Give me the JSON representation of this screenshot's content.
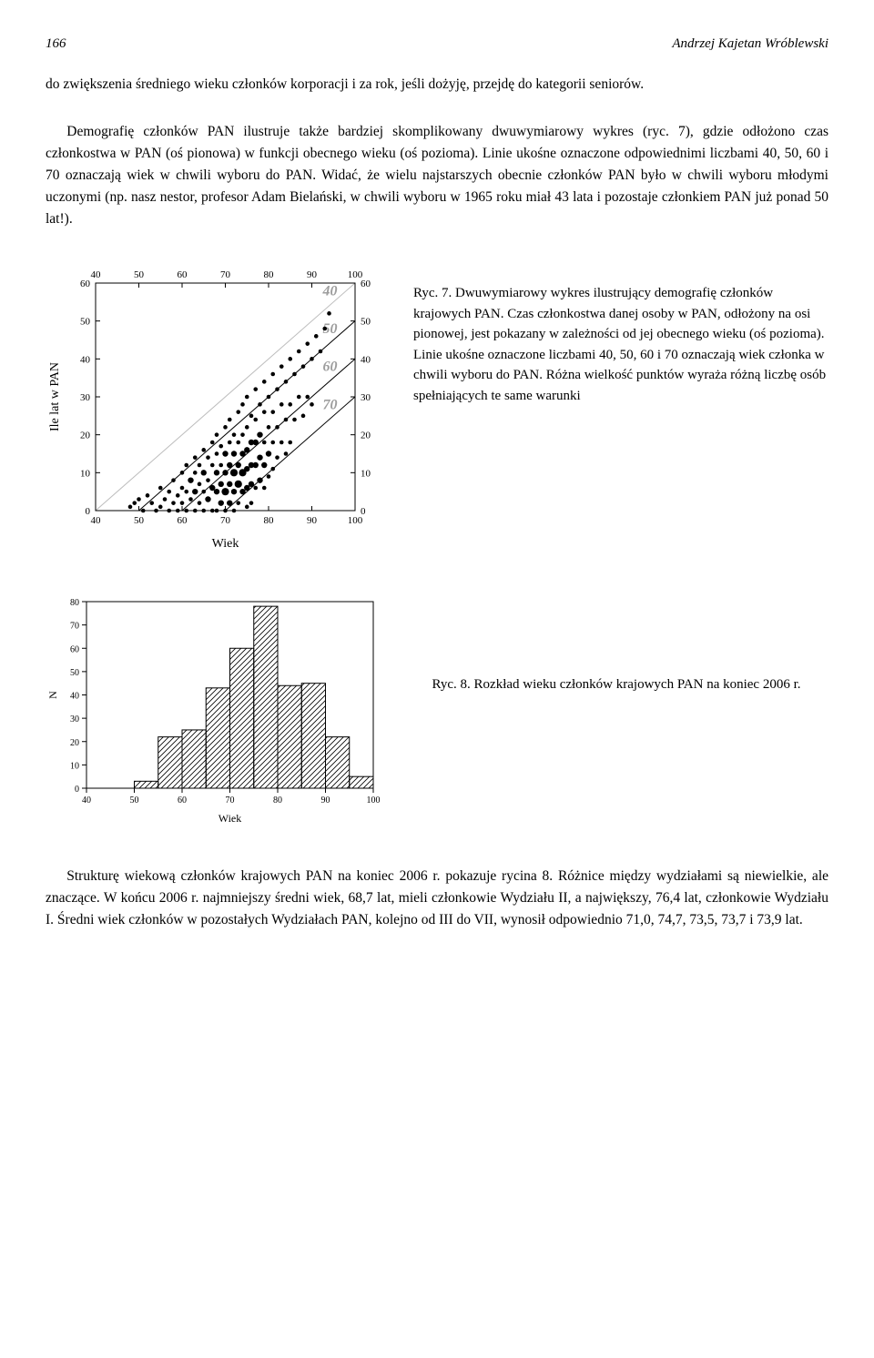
{
  "header": {
    "page_number": "166",
    "author": "Andrzej Kajetan Wróblewski"
  },
  "paragraph1": "do zwiększenia średniego wieku członków korporacji i za rok, jeśli dożyję, przejdę do kategorii seniorów.",
  "paragraph2": "Demografię członków PAN ilustruje także bardziej skomplikowany dwuwymiarowy wykres (ryc. 7), gdzie odłożono czas członkostwa w PAN (oś pionowa) w funkcji obecnego wieku (oś pozioma). Linie ukośne oznaczone odpowiednimi liczbami 40, 50, 60 i 70 oznaczają wiek w chwili wyboru do PAN. Widać, że wielu najstarszych obecnie członków PAN było w chwili wyboru młodymi uczonymi (np. nasz nestor, profesor Adam Bielański, w chwili wyboru w 1965 roku miał 43 lata i pozostaje członkiem PAN już ponad 50 lat!).",
  "paragraph3": "Strukturę wiekową członków krajowych PAN na koniec 2006 r. pokazuje rycina 8. Różnice między wydziałami są niewielkie, ale znaczące. W końcu 2006 r. najmniejszy średni wiek, 68,7 lat, mieli członkowie Wydziału II, a największy, 76,4 lat, członkowie Wydziału I. Średni wiek członków w pozostałych Wydziałach PAN, kolejno od III do VII, wynosił odpowiednio 71,0, 74,7, 73,5, 73,7 i 73,9 lat.",
  "fig7": {
    "type": "scatter",
    "xlabel": "Wiek",
    "ylabel": "Ile lat w PAN",
    "xlim": [
      40,
      100
    ],
    "ylim": [
      0,
      60
    ],
    "xticks": [
      40,
      50,
      60,
      70,
      80,
      90,
      100
    ],
    "yticks": [
      0,
      10,
      20,
      30,
      40,
      50,
      60
    ],
    "yticks_right": [
      0,
      10,
      20,
      30,
      40,
      50,
      60
    ],
    "top_ticks": [
      40,
      50,
      60,
      70,
      80,
      90,
      100
    ],
    "diag_lines": [
      {
        "label": "40",
        "intercept": 40,
        "color": "#bdbdbd"
      },
      {
        "label": "50",
        "intercept": 50,
        "color": "#000000"
      },
      {
        "label": "60",
        "intercept": 60,
        "color": "#000000"
      },
      {
        "label": "70",
        "intercept": 70,
        "color": "#000000"
      }
    ],
    "diag_label_color": "#9e9e9e",
    "diag_label_fontsize": 16,
    "label_fontsize": 14,
    "tick_fontsize": 11,
    "background_color": "#ffffff",
    "axis_color": "#000000",
    "point_color": "#000000",
    "points": [
      [
        48,
        1,
        1
      ],
      [
        49,
        2,
        1
      ],
      [
        50,
        3,
        1
      ],
      [
        51,
        0,
        1
      ],
      [
        52,
        4,
        1
      ],
      [
        53,
        2,
        1
      ],
      [
        54,
        0,
        1
      ],
      [
        55,
        6,
        1
      ],
      [
        55,
        1,
        1
      ],
      [
        56,
        3,
        1
      ],
      [
        57,
        5,
        1
      ],
      [
        57,
        0,
        1
      ],
      [
        58,
        8,
        1
      ],
      [
        58,
        2,
        1
      ],
      [
        59,
        4,
        1
      ],
      [
        59,
        0,
        1
      ],
      [
        60,
        10,
        1
      ],
      [
        60,
        6,
        1
      ],
      [
        60,
        2,
        1
      ],
      [
        61,
        12,
        1
      ],
      [
        61,
        5,
        1
      ],
      [
        61,
        0,
        1
      ],
      [
        62,
        8,
        2
      ],
      [
        62,
        3,
        1
      ],
      [
        63,
        14,
        1
      ],
      [
        63,
        10,
        1
      ],
      [
        63,
        5,
        2
      ],
      [
        63,
        0,
        1
      ],
      [
        64,
        12,
        1
      ],
      [
        64,
        7,
        1
      ],
      [
        64,
        2,
        1
      ],
      [
        65,
        16,
        1
      ],
      [
        65,
        10,
        2
      ],
      [
        65,
        5,
        1
      ],
      [
        65,
        0,
        1
      ],
      [
        66,
        14,
        1
      ],
      [
        66,
        8,
        1
      ],
      [
        66,
        3,
        2
      ],
      [
        67,
        18,
        1
      ],
      [
        67,
        12,
        1
      ],
      [
        67,
        6,
        2
      ],
      [
        67,
        0,
        1
      ],
      [
        68,
        20,
        1
      ],
      [
        68,
        15,
        1
      ],
      [
        68,
        10,
        2
      ],
      [
        68,
        5,
        2
      ],
      [
        68,
        0,
        1
      ],
      [
        69,
        17,
        1
      ],
      [
        69,
        12,
        1
      ],
      [
        69,
        7,
        2
      ],
      [
        69,
        2,
        2
      ],
      [
        70,
        22,
        1
      ],
      [
        70,
        15,
        2
      ],
      [
        70,
        10,
        2
      ],
      [
        70,
        5,
        3
      ],
      [
        70,
        0,
        1
      ],
      [
        71,
        24,
        1
      ],
      [
        71,
        18,
        1
      ],
      [
        71,
        12,
        2
      ],
      [
        71,
        7,
        2
      ],
      [
        71,
        2,
        2
      ],
      [
        72,
        20,
        1
      ],
      [
        72,
        15,
        2
      ],
      [
        72,
        10,
        3
      ],
      [
        72,
        5,
        2
      ],
      [
        72,
        0,
        1
      ],
      [
        73,
        26,
        1
      ],
      [
        73,
        18,
        1
      ],
      [
        73,
        12,
        2
      ],
      [
        73,
        7,
        3
      ],
      [
        73,
        2,
        1
      ],
      [
        74,
        28,
        1
      ],
      [
        74,
        20,
        1
      ],
      [
        74,
        15,
        2
      ],
      [
        74,
        10,
        3
      ],
      [
        74,
        5,
        2
      ],
      [
        75,
        30,
        1
      ],
      [
        75,
        22,
        1
      ],
      [
        75,
        16,
        2
      ],
      [
        75,
        11,
        2
      ],
      [
        75,
        6,
        2
      ],
      [
        75,
        1,
        1
      ],
      [
        76,
        25,
        1
      ],
      [
        76,
        18,
        2
      ],
      [
        76,
        12,
        2
      ],
      [
        76,
        7,
        2
      ],
      [
        76,
        2,
        1
      ],
      [
        77,
        32,
        1
      ],
      [
        77,
        24,
        1
      ],
      [
        77,
        18,
        2
      ],
      [
        77,
        12,
        2
      ],
      [
        77,
        6,
        1
      ],
      [
        78,
        28,
        1
      ],
      [
        78,
        20,
        2
      ],
      [
        78,
        14,
        2
      ],
      [
        78,
        8,
        2
      ],
      [
        79,
        34,
        1
      ],
      [
        79,
        26,
        1
      ],
      [
        79,
        18,
        1
      ],
      [
        79,
        12,
        2
      ],
      [
        79,
        6,
        1
      ],
      [
        80,
        30,
        1
      ],
      [
        80,
        22,
        1
      ],
      [
        80,
        15,
        2
      ],
      [
        80,
        9,
        1
      ],
      [
        81,
        36,
        1
      ],
      [
        81,
        26,
        1
      ],
      [
        81,
        18,
        1
      ],
      [
        81,
        11,
        1
      ],
      [
        82,
        32,
        1
      ],
      [
        82,
        22,
        1
      ],
      [
        82,
        14,
        1
      ],
      [
        83,
        38,
        1
      ],
      [
        83,
        28,
        1
      ],
      [
        83,
        18,
        1
      ],
      [
        84,
        34,
        1
      ],
      [
        84,
        24,
        1
      ],
      [
        84,
        15,
        1
      ],
      [
        85,
        40,
        1
      ],
      [
        85,
        28,
        1
      ],
      [
        85,
        18,
        1
      ],
      [
        86,
        36,
        1
      ],
      [
        86,
        24,
        1
      ],
      [
        87,
        42,
        1
      ],
      [
        87,
        30,
        1
      ],
      [
        88,
        38,
        1
      ],
      [
        88,
        25,
        1
      ],
      [
        89,
        44,
        1
      ],
      [
        89,
        30,
        1
      ],
      [
        90,
        40,
        1
      ],
      [
        90,
        28,
        1
      ],
      [
        91,
        46,
        1
      ],
      [
        92,
        42,
        1
      ],
      [
        93,
        48,
        1
      ],
      [
        94,
        52,
        1
      ]
    ],
    "caption": "Ryc. 7. Dwuwymiarowy wykres ilustrujący demografię członków krajowych PAN. Czas członkostwa danej osoby w PAN, odłożony na osi pionowej, jest pokazany w zależności od jej obecnego wieku (oś pozioma). Linie ukośne oznaczone liczbami 40, 50, 60 i 70 oznaczają wiek członka w chwili wyboru do PAN. Różna wielkość punktów wyraża różną liczbę osób spełniających te same warunki"
  },
  "fig8": {
    "type": "histogram",
    "xlabel": "Wiek",
    "ylabel": "N",
    "xlim": [
      40,
      100
    ],
    "ylim": [
      0,
      80
    ],
    "xticks": [
      40,
      50,
      60,
      70,
      80,
      90,
      100
    ],
    "yticks": [
      0,
      10,
      20,
      30,
      40,
      50,
      60,
      70,
      80
    ],
    "bin_edges": [
      40,
      45,
      50,
      55,
      60,
      65,
      70,
      75,
      80,
      85,
      90,
      95,
      100
    ],
    "counts": [
      0,
      0,
      3,
      22,
      25,
      43,
      60,
      78,
      44,
      45,
      22,
      5
    ],
    "bar_fill": "#ffffff",
    "bar_stroke": "#000000",
    "hatch_color": "#000000",
    "background_color": "#ffffff",
    "axis_color": "#000000",
    "label_fontsize": 12,
    "tick_fontsize": 10,
    "caption": "Ryc. 8. Rozkład wieku członków krajowych PAN na koniec 2006 r."
  }
}
